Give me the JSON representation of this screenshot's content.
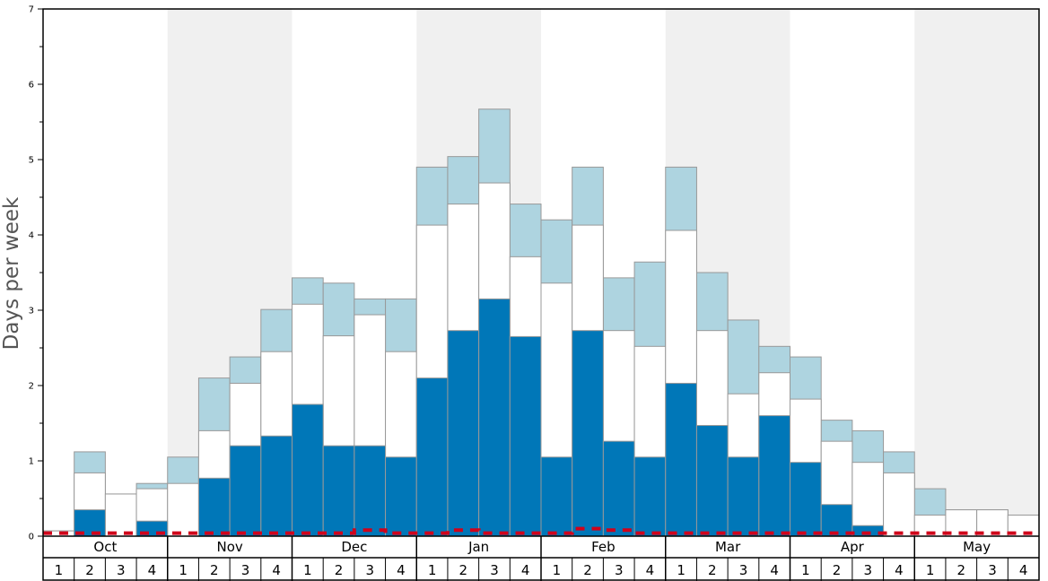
{
  "chart_data": {
    "type": "bar",
    "title": "",
    "xlabel": "",
    "ylabel": "Days per week",
    "ylim": [
      0,
      7
    ],
    "yticks": [
      "0",
      "1",
      "2",
      "3",
      "4",
      "5",
      "6",
      "7"
    ],
    "months": [
      "Oct",
      "Nov",
      "Dec",
      "Jan",
      "Feb",
      "Mar",
      "Apr",
      "May"
    ],
    "weeks": [
      "1",
      "2",
      "3",
      "4"
    ],
    "series": [
      {
        "name": "dark",
        "color": "#0077b8",
        "values": [
          0,
          0.35,
          0,
          0.2,
          0,
          0.77,
          1.2,
          1.33,
          1.75,
          1.2,
          1.2,
          1.05,
          2.1,
          2.73,
          3.15,
          2.65,
          1.05,
          2.73,
          1.26,
          1.05,
          2.03,
          1.47,
          1.05,
          1.6,
          0.98,
          0.42,
          0.14,
          0,
          0,
          0,
          0,
          0
        ]
      },
      {
        "name": "white",
        "color": "#ffffff",
        "values": [
          0.07,
          0.84,
          0.56,
          0.63,
          0.7,
          1.4,
          2.03,
          2.45,
          3.08,
          2.66,
          2.94,
          2.45,
          4.13,
          4.41,
          4.69,
          3.71,
          3.36,
          4.13,
          2.73,
          2.52,
          4.06,
          2.73,
          1.89,
          2.17,
          1.82,
          1.26,
          0.98,
          0.84,
          0.28,
          0.35,
          0.35,
          0.28
        ]
      },
      {
        "name": "light",
        "color": "#aed4e0",
        "values": [
          0.07,
          1.12,
          0.56,
          0.7,
          1.05,
          2.1,
          2.38,
          3.01,
          3.43,
          3.36,
          3.15,
          3.15,
          4.9,
          5.04,
          5.67,
          4.41,
          4.2,
          4.9,
          3.43,
          3.64,
          4.9,
          3.5,
          2.87,
          2.52,
          2.38,
          1.54,
          1.4,
          1.12,
          0.63,
          0.35,
          0.35,
          0.28
        ]
      }
    ],
    "line": {
      "name": "dashed",
      "color": "#d0021b",
      "values": [
        0.04,
        0.04,
        0.04,
        0.04,
        0.04,
        0.04,
        0.04,
        0.04,
        0.04,
        0.04,
        0.08,
        0.04,
        0.04,
        0.08,
        0.04,
        0.04,
        0.04,
        0.1,
        0.08,
        0.04,
        0.04,
        0.04,
        0.04,
        0.04,
        0.04,
        0.04,
        0.04,
        0.04,
        0.04,
        0.04,
        0.04,
        0.04
      ]
    },
    "grid": false,
    "shaded_month_colors": [
      "#ffffff",
      "#f0f0f0"
    ]
  }
}
